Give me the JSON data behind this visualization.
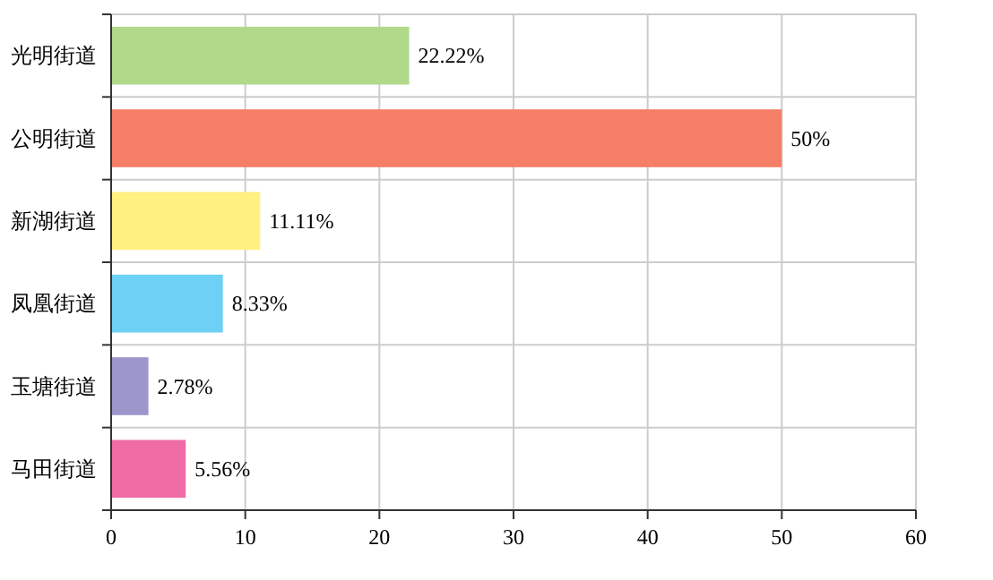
{
  "chart_data": {
    "type": "bar",
    "orientation": "horizontal",
    "categories": [
      "光明街道",
      "公明街道",
      "新湖街道",
      "凤凰街道",
      "玉塘街道",
      "马田街道"
    ],
    "values": [
      22.22,
      50,
      11.11,
      8.33,
      2.78,
      5.56
    ],
    "value_labels": [
      "22.22%",
      "50%",
      "11.11%",
      "8.33%",
      "2.78%",
      "5.56%"
    ],
    "colors": [
      "#b0d98a",
      "#f47f66",
      "#fff07f",
      "#6dd0f5",
      "#9b97cc",
      "#ef6ca5"
    ],
    "xlim": [
      0,
      60
    ],
    "xticks": [
      0,
      10,
      20,
      30,
      40,
      50,
      60
    ],
    "grid": true
  }
}
